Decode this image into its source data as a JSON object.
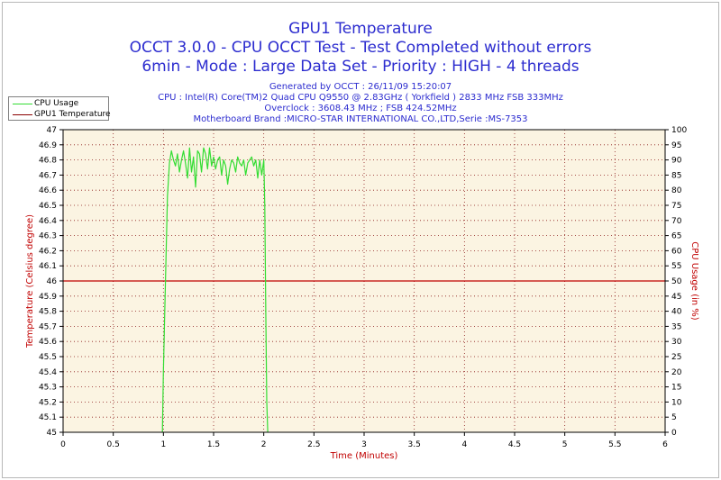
{
  "titles": {
    "line1": "GPU1 Temperature",
    "line2": "OCCT 3.0.0 - CPU OCCT Test - Test Completed without errors",
    "line3": "6min - Mode : Large Data Set - Priority : HIGH - 4 threads"
  },
  "info": {
    "generated": "Generated by OCCT : 26/11/09 15:20:07",
    "cpu": "CPU : Intel(R) Core(TM)2 Quad CPU Q9550 @ 2.83GHz ( Yorkfield ) 2833 MHz FSB 333MHz",
    "overclock": "Overclock : 3608.43 MHz ; FSB 424.52MHz",
    "motherboard": "Motherboard Brand :MICRO-STAR INTERNATIONAL CO.,LTD,Serie :MS-7353"
  },
  "legend": [
    {
      "label": "CPU Usage",
      "color": "#33dd33"
    },
    {
      "label": "GPU1 Temperature",
      "color": "#8b0000"
    }
  ],
  "chart_data": {
    "type": "line",
    "xlabel": "Time (Minutes)",
    "ylabel": "Temperature (Celsius degree)",
    "y2label": "CPU Usage (in %)",
    "xlim": [
      0,
      6
    ],
    "ylim": [
      45,
      47
    ],
    "y2lim": [
      0,
      100
    ],
    "x_ticks": [
      "0",
      "0.5",
      "1",
      "1.5",
      "2",
      "2.5",
      "3",
      "3.5",
      "4",
      "4.5",
      "5",
      "5.5",
      "6"
    ],
    "y_ticks": [
      "45",
      "45.1",
      "45.2",
      "45.3",
      "45.4",
      "45.5",
      "45.6",
      "45.7",
      "45.8",
      "45.9",
      "46",
      "46.1",
      "46.2",
      "46.3",
      "46.4",
      "46.5",
      "46.6",
      "46.7",
      "46.8",
      "46.9",
      "47"
    ],
    "y2_ticks": [
      "0",
      "5",
      "10",
      "15",
      "20",
      "25",
      "30",
      "35",
      "40",
      "45",
      "50",
      "55",
      "60",
      "65",
      "70",
      "75",
      "80",
      "85",
      "90",
      "95",
      "100"
    ],
    "grid": true,
    "background": "#fbf4e2",
    "series": [
      {
        "name": "GPU1 Temperature",
        "axis": "left",
        "color": "#c00000",
        "x": [
          0,
          6
        ],
        "y": [
          46,
          46
        ]
      },
      {
        "name": "CPU Usage",
        "axis": "right",
        "color": "#33dd33",
        "x": [
          0.99,
          1.0,
          1.02,
          1.04,
          1.06,
          1.08,
          1.1,
          1.12,
          1.14,
          1.16,
          1.18,
          1.2,
          1.22,
          1.24,
          1.26,
          1.28,
          1.3,
          1.32,
          1.34,
          1.36,
          1.38,
          1.4,
          1.42,
          1.44,
          1.46,
          1.48,
          1.5,
          1.52,
          1.54,
          1.56,
          1.58,
          1.6,
          1.62,
          1.64,
          1.66,
          1.68,
          1.7,
          1.72,
          1.74,
          1.76,
          1.78,
          1.8,
          1.82,
          1.84,
          1.86,
          1.88,
          1.9,
          1.92,
          1.94,
          1.96,
          1.98,
          2.0,
          2.01,
          2.02,
          2.03,
          2.04
        ],
        "y": [
          0,
          20,
          50,
          78,
          89,
          93,
          90,
          88,
          92,
          86,
          90,
          93,
          89,
          84,
          94,
          86,
          91,
          81,
          93,
          92,
          86,
          94,
          92,
          87,
          94,
          88,
          91,
          87,
          90,
          91,
          85,
          90,
          88,
          82,
          87,
          90,
          89,
          86,
          91,
          89,
          88,
          90,
          85,
          89,
          90,
          91,
          88,
          90,
          84,
          90,
          85,
          90,
          75,
          40,
          10,
          0
        ]
      }
    ]
  }
}
